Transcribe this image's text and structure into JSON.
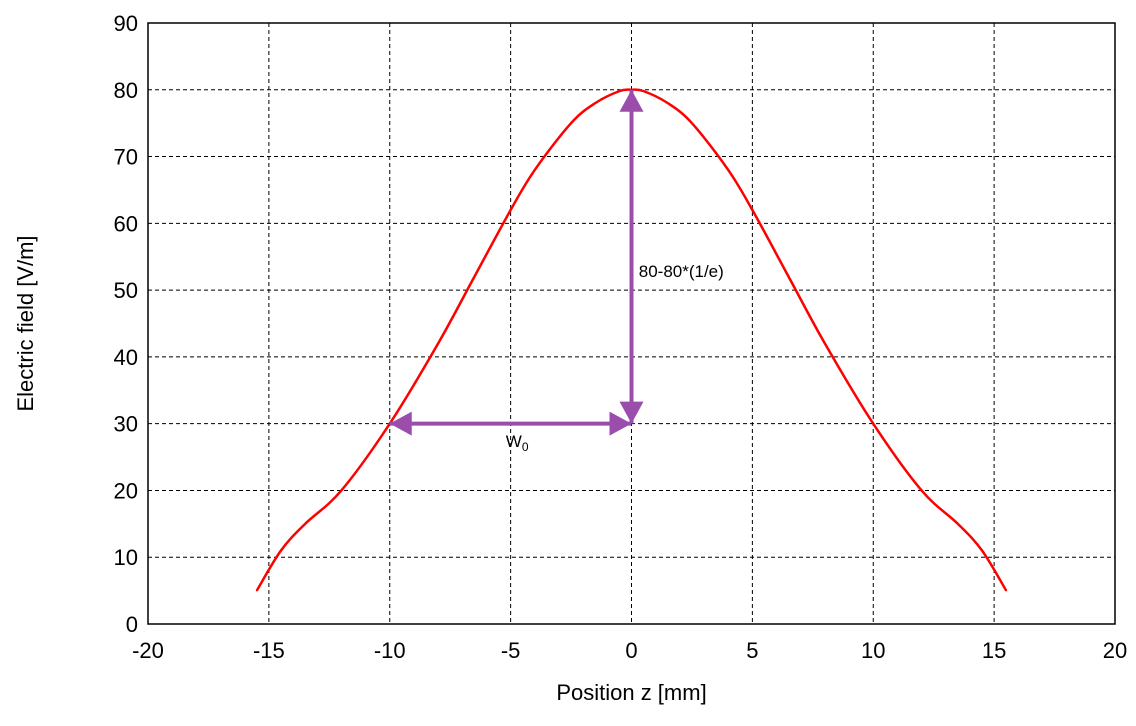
{
  "chart_data": {
    "type": "line",
    "title": "",
    "xlabel": "Position z [mm]",
    "ylabel": "Electric field [V/m]",
    "xlim": [
      -20,
      20
    ],
    "ylim": [
      0,
      90
    ],
    "xticks": [
      -20,
      -15,
      -10,
      -5,
      0,
      5,
      10,
      15,
      20
    ],
    "yticks": [
      0,
      10,
      20,
      30,
      40,
      50,
      60,
      70,
      80,
      90
    ],
    "xtick_labels": [
      "-20",
      "-15",
      "-10",
      "-5",
      "0",
      "5",
      "10",
      "15",
      "20"
    ],
    "ytick_labels": [
      "0",
      "10",
      "20",
      "30",
      "40",
      "50",
      "60",
      "70",
      "80",
      "90"
    ],
    "grid": true,
    "series": [
      {
        "color": "#ff0000",
        "x": [
          -15.5,
          -14.5,
          -13.5,
          -12,
          -10,
          -8,
          -6.5,
          -5,
          -4,
          -2.5,
          -1.5,
          -0.5,
          0,
          0.5,
          1.5,
          2.5,
          4,
          5,
          6.5,
          8,
          10,
          12,
          13.5,
          14.5,
          15.5
        ],
        "y": [
          5,
          11,
          15,
          20,
          30,
          42,
          52,
          62,
          68,
          75,
          78,
          79.8,
          80,
          79.8,
          78,
          75,
          68,
          62,
          52,
          42,
          30,
          20,
          15,
          11,
          5
        ]
      }
    ],
    "annotations": [
      {
        "type": "double-arrow",
        "color": "#9b4dac",
        "from": [
          0,
          30
        ],
        "to": [
          0,
          80
        ],
        "label": "80-80*(1/e)",
        "label_at": [
          0.3,
          52
        ]
      },
      {
        "type": "double-arrow",
        "color": "#9b4dac",
        "from": [
          -10,
          30
        ],
        "to": [
          0,
          30
        ],
        "label": "W",
        "label_sub": "0",
        "label_at": [
          -5.2,
          26.5
        ]
      }
    ]
  }
}
